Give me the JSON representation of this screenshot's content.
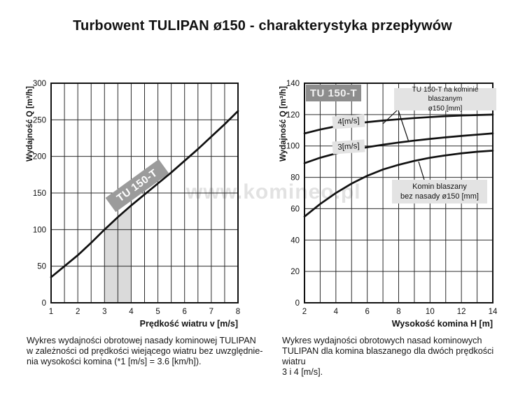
{
  "page": {
    "title": "Turbowent TULIPAN ø150 - charakterystyka przepływów",
    "watermark": "www.komineo.pl"
  },
  "captions": {
    "left": "Wykres wydajności obrotowej nasady kominowej TULIPAN\nw zależności od prędkości wiejącego wiatru bez uwzględnie-\nnia wysokości komina (*1 [m/s] = 3.6 [km/h]).",
    "right": "Wykres wydajności obrotowych nasad kominowych\nTULIPAN dla komina blaszanego dla dwóch prędkości wiatru\n3 i 4 [m/s]."
  },
  "chart_data": [
    {
      "type": "line",
      "title": "TU 150-T",
      "xlabel": "Prędkość wiatru v [m/s]",
      "ylabel": "Wydajność Q [m³/h]",
      "xlim": [
        1,
        8
      ],
      "ylim": [
        0,
        300
      ],
      "x_ticks": [
        1,
        2,
        3,
        4,
        5,
        6,
        7,
        8
      ],
      "x_grid_step": 0.5,
      "y_ticks": [
        0,
        50,
        100,
        150,
        200,
        250,
        300
      ],
      "grid": true,
      "shaded_band_x": [
        3,
        4
      ],
      "series": [
        {
          "name": "TU 150-T",
          "x": [
            1,
            1.5,
            2,
            2.5,
            3,
            3.5,
            4,
            4.5,
            5,
            5.5,
            6,
            6.5,
            7,
            7.5,
            8
          ],
          "y": [
            35,
            50,
            65,
            82,
            100,
            117,
            133,
            148,
            163,
            178,
            194,
            210,
            227,
            244,
            262
          ]
        }
      ],
      "annotations": {
        "curve_label": "TU 150-T"
      }
    },
    {
      "type": "line",
      "title": "TU 150-T",
      "xlabel": "Wysokość komina H [m]",
      "ylabel": "Wydajność Q [m³/h]",
      "xlim": [
        2,
        14
      ],
      "ylim": [
        0,
        140
      ],
      "x_ticks": [
        2,
        4,
        6,
        8,
        10,
        12,
        14
      ],
      "x_grid_step": 1,
      "y_ticks": [
        0,
        20,
        40,
        60,
        80,
        100,
        120,
        140
      ],
      "grid": true,
      "series": [
        {
          "name": "TU 150-T na kominie blaszanym ø150 [mm] przy wietrze 4[m/s]",
          "x": [
            2,
            3,
            4,
            5,
            6,
            7,
            8,
            9,
            10,
            11,
            12,
            13,
            14
          ],
          "y": [
            108,
            110.5,
            112.5,
            114,
            115.2,
            116.2,
            117,
            117.8,
            118.4,
            119,
            119.4,
            119.7,
            120
          ]
        },
        {
          "name": "TU 150-T na kominie blaszanym ø150 [mm] przy wietrze 3[m/s]",
          "x": [
            2,
            3,
            4,
            5,
            6,
            7,
            8,
            9,
            10,
            11,
            12,
            13,
            14
          ],
          "y": [
            89,
            92.5,
            95.2,
            97.4,
            99.2,
            100.8,
            102.2,
            103.4,
            104.5,
            105.5,
            106.4,
            107.2,
            108
          ]
        },
        {
          "name": "Komin blaszany bez nasady ø150 [mm]",
          "x": [
            2,
            3,
            4,
            5,
            6,
            7,
            8,
            9,
            10,
            11,
            12,
            13,
            14
          ],
          "y": [
            55,
            63,
            70,
            76,
            81,
            85,
            88,
            90.5,
            92.5,
            94,
            95.3,
            96.3,
            97
          ]
        }
      ],
      "annotations": {
        "title_box": "TU 150-T",
        "label_4ms": "4[m/s]",
        "label_3ms": "3[m/s]",
        "anno_top_lines": [
          "TU 150-T na kominie blaszanym",
          "ø150 [mm]"
        ],
        "anno_bottom_lines": [
          "Komin blaszany",
          "bez nasady ø150 [mm]"
        ]
      }
    }
  ]
}
